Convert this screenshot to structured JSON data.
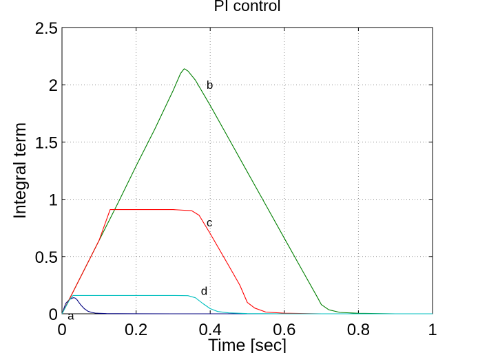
{
  "chart_data": {
    "type": "line",
    "title": "PI control",
    "xlabel": "Time [sec]",
    "ylabel": "Integral term",
    "xlim": [
      0,
      1
    ],
    "ylim": [
      0,
      2.5
    ],
    "grid": true,
    "x_ticks": [
      0,
      0.2,
      0.4,
      0.6,
      0.8,
      1
    ],
    "x_tick_labels": [
      "0",
      "0.2",
      "0.4",
      "0.6",
      "0.8",
      "1"
    ],
    "y_ticks": [
      0,
      0.5,
      1,
      1.5,
      2,
      2.5
    ],
    "y_tick_labels": [
      "0",
      "0.5",
      "1",
      "1.5",
      "2",
      "2.5"
    ],
    "series": [
      {
        "name": "a",
        "color": "#00007f",
        "x": [
          0,
          0.01,
          0.02,
          0.03,
          0.035,
          0.04,
          0.05,
          0.06,
          0.07,
          0.08,
          0.09,
          0.1,
          0.12,
          0.15,
          0.2,
          0.3,
          1.0
        ],
        "y": [
          0,
          0.09,
          0.125,
          0.14,
          0.138,
          0.125,
          0.08,
          0.045,
          0.022,
          0.012,
          0.006,
          0.004,
          0.002,
          0.001,
          0.0005,
          0,
          0
        ]
      },
      {
        "name": "b",
        "color": "#007f00",
        "x": [
          0,
          0.05,
          0.1,
          0.15,
          0.2,
          0.25,
          0.3,
          0.32,
          0.33,
          0.34,
          0.36,
          0.4,
          0.45,
          0.5,
          0.55,
          0.6,
          0.65,
          0.69,
          0.7,
          0.72,
          0.75,
          0.8,
          0.9,
          1.0
        ],
        "y": [
          0,
          0.32,
          0.64,
          0.96,
          1.29,
          1.61,
          1.95,
          2.1,
          2.14,
          2.12,
          2.04,
          1.82,
          1.53,
          1.24,
          0.95,
          0.66,
          0.37,
          0.14,
          0.08,
          0.035,
          0.012,
          0.004,
          0,
          0
        ]
      },
      {
        "name": "c",
        "color": "#ff0000",
        "x": [
          0,
          0.05,
          0.1,
          0.13,
          0.2,
          0.3,
          0.35,
          0.37,
          0.4,
          0.45,
          0.48,
          0.5,
          0.52,
          0.55,
          0.6,
          0.7,
          1.0
        ],
        "y": [
          0,
          0.32,
          0.64,
          0.91,
          0.91,
          0.91,
          0.9,
          0.86,
          0.7,
          0.42,
          0.25,
          0.1,
          0.05,
          0.015,
          0.005,
          0,
          0
        ]
      },
      {
        "name": "d",
        "color": "#00bfbf",
        "x": [
          0,
          0.01,
          0.02,
          0.03,
          0.1,
          0.2,
          0.3,
          0.34,
          0.36,
          0.38,
          0.4,
          0.42,
          0.45,
          0.5,
          0.6,
          1.0
        ],
        "y": [
          0,
          0.06,
          0.12,
          0.16,
          0.16,
          0.16,
          0.16,
          0.158,
          0.14,
          0.09,
          0.045,
          0.02,
          0.008,
          0.002,
          0,
          0
        ]
      }
    ],
    "annotations": [
      {
        "text": "a",
        "x": 0.015,
        "y": -0.015
      },
      {
        "text": "b",
        "x": 0.39,
        "y": 2.0
      },
      {
        "text": "c",
        "x": 0.39,
        "y": 0.8
      },
      {
        "text": "d",
        "x": 0.375,
        "y": 0.2
      }
    ]
  }
}
